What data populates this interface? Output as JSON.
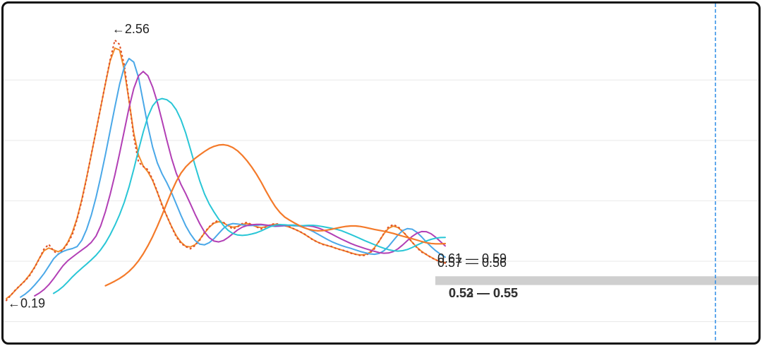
{
  "chart_data": {
    "type": "line",
    "title": "",
    "xlabel": "",
    "ylabel": "",
    "grid": true,
    "legend": "none",
    "x_count": 131,
    "ylim": [
      0.0,
      2.7
    ],
    "series": [
      {
        "color": "#f28b2c",
        "width": 2,
        "dotted": false,
        "lag": 0,
        "smooth": 1
      },
      {
        "color": "#e0542a",
        "width": 2,
        "dotted": true,
        "lag": 0,
        "smooth": 0
      },
      {
        "color": "#4aa8e8",
        "width": 2,
        "dotted": false,
        "lag": 3,
        "smooth": 2
      },
      {
        "color": "#b23fb5",
        "width": 2,
        "dotted": false,
        "lag": 6,
        "smooth": 3
      },
      {
        "color": "#29c6d6",
        "width": 2,
        "dotted": false,
        "lag": 10,
        "smooth": 5
      },
      {
        "color": "#f47a2a",
        "width": 2.2,
        "dotted": false,
        "lag": 21,
        "smooth": 10
      }
    ],
    "base_values": [
      0.19,
      0.24,
      0.29,
      0.33,
      0.37,
      0.42,
      0.49,
      0.57,
      0.66,
      0.7,
      0.64,
      0.61,
      0.65,
      0.71,
      0.79,
      0.93,
      1.1,
      1.3,
      1.52,
      1.73,
      1.95,
      2.17,
      2.38,
      2.56,
      2.52,
      2.33,
      2.01,
      1.68,
      1.45,
      1.41,
      1.38,
      1.29,
      1.18,
      1.05,
      0.96,
      0.86,
      0.77,
      0.71,
      0.68,
      0.66,
      0.69,
      0.74,
      0.81,
      0.86,
      0.9,
      0.92,
      0.9,
      0.87,
      0.84,
      0.86,
      0.89,
      0.9,
      0.88,
      0.86,
      0.84,
      0.86,
      0.88,
      0.89,
      0.88,
      0.87,
      0.86,
      0.84,
      0.82,
      0.8,
      0.77,
      0.74,
      0.72,
      0.7,
      0.69,
      0.68,
      0.66,
      0.65,
      0.64,
      0.62,
      0.61,
      0.6,
      0.6,
      0.62,
      0.66,
      0.73,
      0.8,
      0.86,
      0.88,
      0.86,
      0.82,
      0.77,
      0.72,
      0.67,
      0.63,
      0.61,
      0.58,
      0.56,
      0.54,
      0.53
    ],
    "dot_noise": 0.04,
    "annotations": {
      "max_label": "–2.56",
      "max_arrow": "←",
      "max_value": "2.56",
      "min_label": "←0.19",
      "start_value": "0.19",
      "end_labels_upper": [
        "0.61 — 0.59",
        "0.57 — 0.56"
      ],
      "end_labels_lower": [
        "0.52 — 0.55",
        "0.53 — 0.55"
      ]
    },
    "vline_color": "#2b8ce6",
    "band_color": "#cfcfcf"
  }
}
